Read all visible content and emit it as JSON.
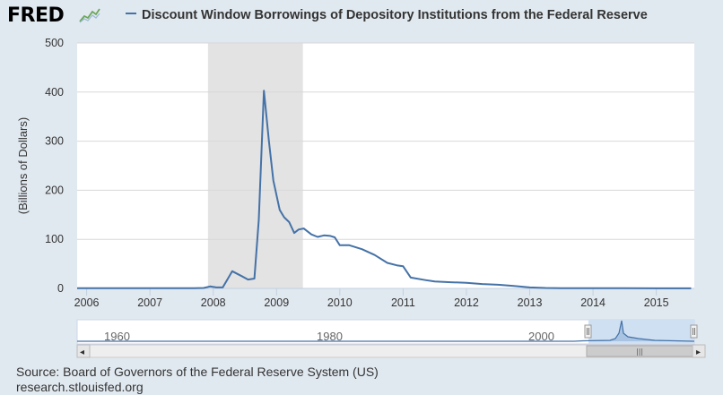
{
  "header": {
    "logo_text": "FRED",
    "logo_icon": "line-chart-icon",
    "legend_label": "Discount Window Borrowings of Depository Institutions from the Federal Reserve"
  },
  "colors": {
    "series": "#4572a7",
    "recession": "#e3e3e3",
    "plot_bg": "#ffffff",
    "page_bg": "#e1e9f0"
  },
  "chart_data": {
    "type": "line",
    "ylabel": "(Billions of Dollars)",
    "ylim": [
      0,
      500
    ],
    "y_ticks": [
      0,
      100,
      200,
      300,
      400,
      500
    ],
    "x_range": [
      2005.85,
      2015.6
    ],
    "x_ticks": [
      "2006",
      "2007",
      "2008",
      "2009",
      "2010",
      "2011",
      "2012",
      "2013",
      "2014",
      "2015"
    ],
    "grid": "horizontal",
    "recession": [
      2007.917,
      2009.417
    ],
    "series": [
      {
        "points": [
          [
            2005.85,
            0.3
          ],
          [
            2006.5,
            0.3
          ],
          [
            2007.0,
            0.4
          ],
          [
            2007.5,
            0.4
          ],
          [
            2007.7,
            0.6
          ],
          [
            2007.85,
            1.0
          ],
          [
            2007.95,
            4.0
          ],
          [
            2008.05,
            2.0
          ],
          [
            2008.15,
            2.0
          ],
          [
            2008.3,
            35
          ],
          [
            2008.45,
            25
          ],
          [
            2008.55,
            18
          ],
          [
            2008.65,
            20
          ],
          [
            2008.72,
            140
          ],
          [
            2008.8,
            403
          ],
          [
            2008.88,
            300
          ],
          [
            2008.95,
            220
          ],
          [
            2009.05,
            160
          ],
          [
            2009.12,
            145
          ],
          [
            2009.2,
            135
          ],
          [
            2009.28,
            113
          ],
          [
            2009.35,
            120
          ],
          [
            2009.43,
            122
          ],
          [
            2009.55,
            110
          ],
          [
            2009.65,
            105
          ],
          [
            2009.75,
            108
          ],
          [
            2009.85,
            107
          ],
          [
            2009.92,
            104
          ],
          [
            2010.0,
            88
          ],
          [
            2010.15,
            88
          ],
          [
            2010.35,
            80
          ],
          [
            2010.55,
            68
          ],
          [
            2010.75,
            52
          ],
          [
            2010.9,
            47
          ],
          [
            2011.0,
            45
          ],
          [
            2011.12,
            22
          ],
          [
            2011.35,
            17
          ],
          [
            2011.5,
            14
          ],
          [
            2011.75,
            12.5
          ],
          [
            2012.0,
            11.5
          ],
          [
            2012.25,
            9
          ],
          [
            2012.5,
            7.5
          ],
          [
            2012.75,
            5
          ],
          [
            2013.0,
            2
          ],
          [
            2013.25,
            1
          ],
          [
            2013.5,
            0.5
          ],
          [
            2014.0,
            0.3
          ],
          [
            2014.5,
            0.3
          ],
          [
            2015.0,
            0.2
          ],
          [
            2015.55,
            0.2
          ]
        ]
      }
    ]
  },
  "navigator": {
    "labels": [
      "1960",
      "1980",
      "2000"
    ],
    "scroll_left": "◂",
    "scroll_right": "▸",
    "grip": "|||"
  },
  "source": {
    "line1": "Source: Board of Governors of the Federal Reserve System (US)",
    "line2": "research.stlouisfed.org"
  }
}
